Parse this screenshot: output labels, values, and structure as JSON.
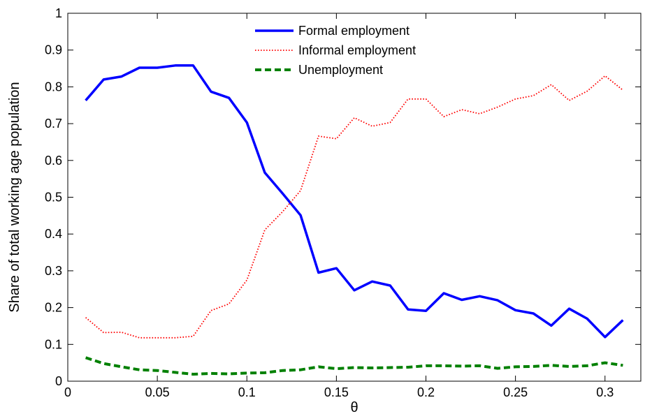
{
  "chart_data": {
    "type": "line",
    "title": "",
    "xlabel": "θ",
    "ylabel": "Share of total working age population",
    "xlim": [
      0,
      0.32
    ],
    "ylim": [
      0,
      1
    ],
    "grid": false,
    "legend_position": "top-center",
    "x_ticks": [
      0,
      0.05,
      0.1,
      0.15,
      0.2,
      0.25,
      0.3
    ],
    "x_tick_labels": [
      "0",
      "0.05",
      "0.1",
      "0.15",
      "0.2",
      "0.25",
      "0.3"
    ],
    "y_ticks": [
      0,
      0.1,
      0.2,
      0.3,
      0.4,
      0.5,
      0.6,
      0.7,
      0.8,
      0.9,
      1
    ],
    "y_tick_labels": [
      "0",
      "0.1",
      "0.2",
      "0.3",
      "0.4",
      "0.5",
      "0.6",
      "0.7",
      "0.8",
      "0.9",
      "1"
    ],
    "x": [
      0.01,
      0.02,
      0.03,
      0.04,
      0.05,
      0.06,
      0.07,
      0.08,
      0.09,
      0.1,
      0.11,
      0.12,
      0.13,
      0.14,
      0.15,
      0.16,
      0.17,
      0.18,
      0.19,
      0.2,
      0.21,
      0.22,
      0.23,
      0.24,
      0.25,
      0.26,
      0.27,
      0.28,
      0.29,
      0.3,
      0.31
    ],
    "series": [
      {
        "name": "Formal employment",
        "color": "#0000ff",
        "style": "solid",
        "values": [
          0.763,
          0.82,
          0.828,
          0.852,
          0.852,
          0.858,
          0.858,
          0.787,
          0.77,
          0.703,
          0.567,
          0.51,
          0.451,
          0.295,
          0.307,
          0.247,
          0.271,
          0.26,
          0.195,
          0.191,
          0.239,
          0.221,
          0.231,
          0.22,
          0.193,
          0.184,
          0.151,
          0.197,
          0.17,
          0.12,
          0.166
        ]
      },
      {
        "name": "Informal employment",
        "color": "#ff0000",
        "style": "dotted",
        "values": [
          0.173,
          0.132,
          0.133,
          0.118,
          0.118,
          0.118,
          0.122,
          0.192,
          0.21,
          0.275,
          0.411,
          0.461,
          0.518,
          0.666,
          0.659,
          0.716,
          0.693,
          0.703,
          0.767,
          0.767,
          0.719,
          0.738,
          0.727,
          0.745,
          0.767,
          0.776,
          0.806,
          0.763,
          0.788,
          0.83,
          0.791
        ]
      },
      {
        "name": "Unemployment",
        "color": "#008000",
        "style": "dashed",
        "values": [
          0.064,
          0.048,
          0.039,
          0.031,
          0.029,
          0.024,
          0.019,
          0.021,
          0.02,
          0.022,
          0.023,
          0.029,
          0.031,
          0.039,
          0.034,
          0.037,
          0.036,
          0.037,
          0.038,
          0.042,
          0.042,
          0.041,
          0.042,
          0.035,
          0.039,
          0.04,
          0.043,
          0.04,
          0.042,
          0.05,
          0.043
        ]
      }
    ]
  }
}
